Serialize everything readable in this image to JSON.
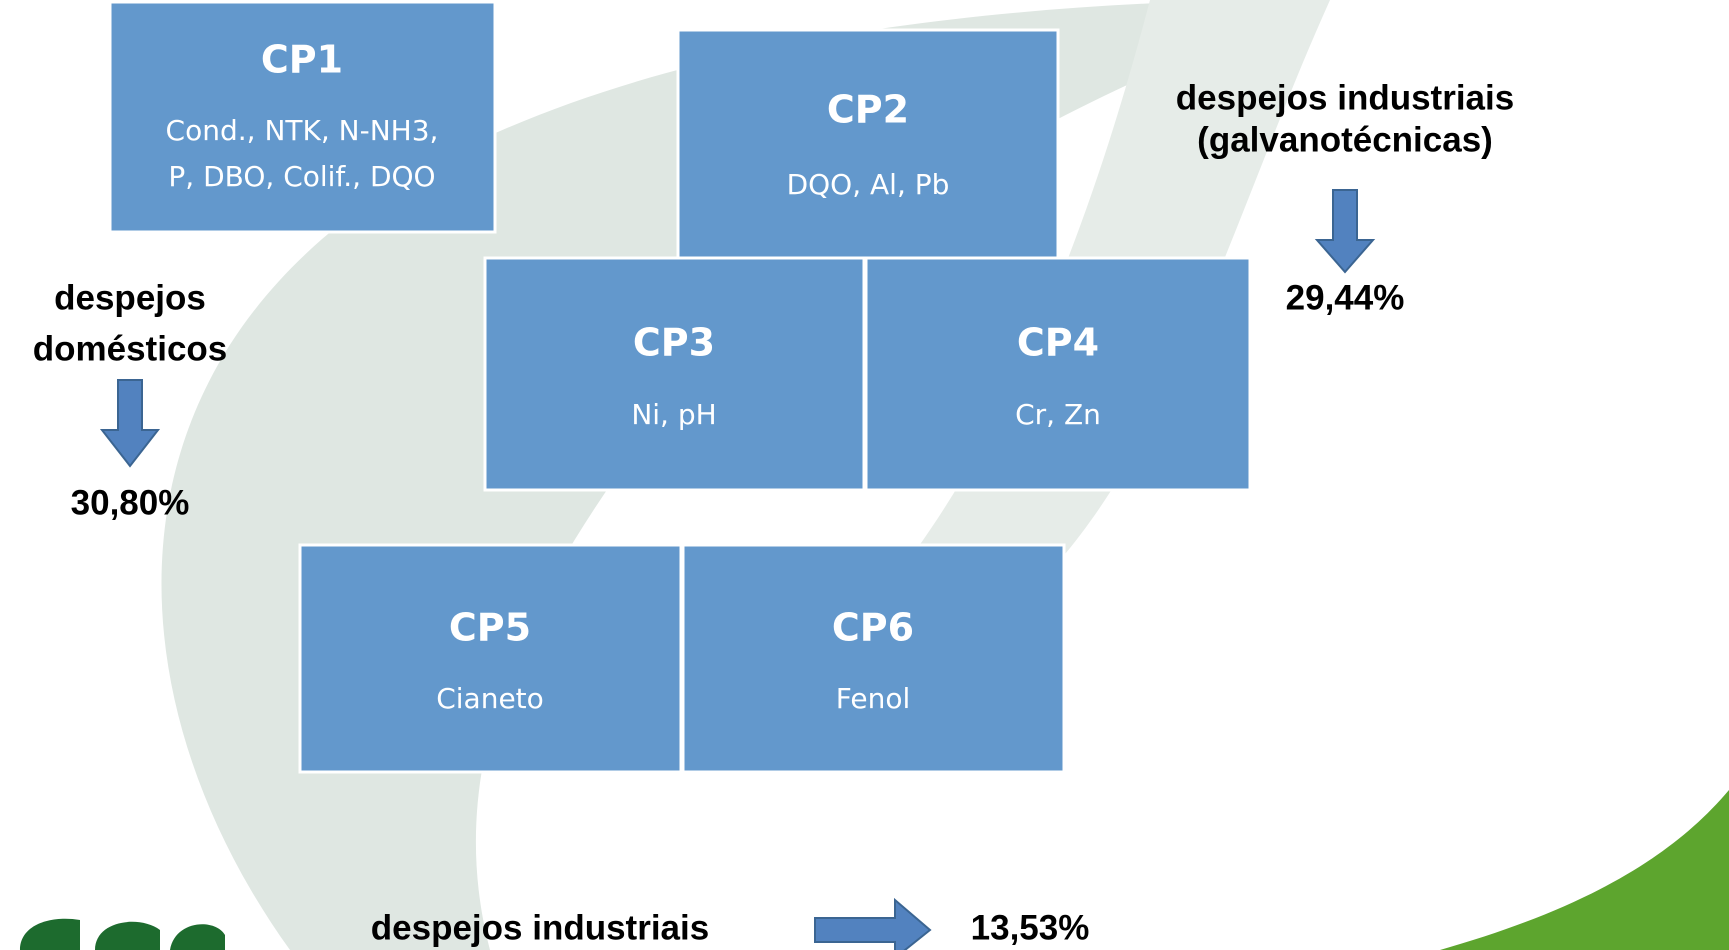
{
  "boxes": [
    {
      "title": "CP1",
      "params": [
        "Cond., NTK, N-NH3,",
        "P, DBO, Colif., DQO"
      ]
    },
    {
      "title": "CP2",
      "params": [
        "DQO, Al, Pb"
      ]
    },
    {
      "title": "CP3",
      "params": [
        "Ni, pH"
      ]
    },
    {
      "title": "CP4",
      "params": [
        "Cr, Zn"
      ]
    },
    {
      "title": "CP5",
      "params": [
        "Cianeto"
      ]
    },
    {
      "title": "CP6",
      "params": [
        "Fenol"
      ]
    }
  ],
  "annotations": [
    {
      "label": [
        "despejos",
        "domésticos"
      ],
      "percentage": "30,80%"
    },
    {
      "label": [
        "despejos industriais",
        "(galvanotécnicas)"
      ],
      "percentage": "29,44%"
    },
    {
      "label": [
        "despejos industriais"
      ],
      "percentage": "13,53%"
    }
  ]
}
